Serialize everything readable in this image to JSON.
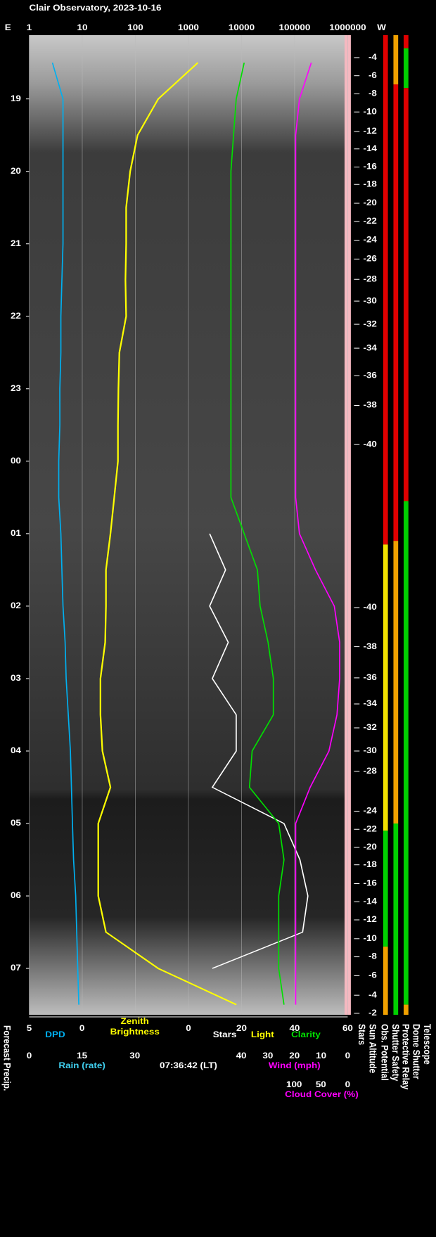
{
  "chart_data": {
    "type": "line",
    "title": "Clair Observatory, 2023-10-16",
    "east_label": "E",
    "west_label": "W",
    "timestamp": "07:36:42 (LT)",
    "forecast_label": "Forecast Precip.",
    "stars_column_label": "Stars",
    "sun_altitude_label": "Sun Altitude",
    "dome_shutter_label": "Dome Shutter",
    "telescope_label": "Telescope",
    "log_scale": true,
    "grid": true,
    "xlim": [
      1,
      1000000
    ],
    "xticks": [
      1,
      10,
      100,
      1000,
      10000,
      100000,
      1000000
    ],
    "time_lim": [
      18.12,
      31.64
    ],
    "time_ticks": [
      {
        "value": 19,
        "label": "19"
      },
      {
        "value": 20,
        "label": "20"
      },
      {
        "value": 21,
        "label": "21"
      },
      {
        "value": 22,
        "label": "22"
      },
      {
        "value": 23,
        "label": "23"
      },
      {
        "value": 24,
        "label": "00"
      },
      {
        "value": 25,
        "label": "01"
      },
      {
        "value": 26,
        "label": "02"
      },
      {
        "value": 27,
        "label": "03"
      },
      {
        "value": 28,
        "label": "04"
      },
      {
        "value": 29,
        "label": "05"
      },
      {
        "value": 30,
        "label": "06"
      },
      {
        "value": 31,
        "label": "07"
      }
    ],
    "scales": {
      "dpd": {
        "lim": [
          5,
          0
        ],
        "ticks": [
          5,
          0
        ],
        "color": "#00b0f0"
      },
      "zenith": {
        "lim": [
          0,
          60
        ],
        "ticks": [
          0,
          20,
          40,
          60
        ],
        "label_lines": [
          "Zenith",
          "Brightness"
        ],
        "color": "#ffff00"
      },
      "rain": {
        "lim": [
          0,
          30
        ],
        "ticks": [
          0,
          15,
          30
        ],
        "label": "Rain (rate)",
        "color": "#40d0f0"
      },
      "wind": {
        "lim": [
          40,
          0
        ],
        "ticks": [
          40,
          30,
          20,
          10,
          0
        ],
        "label": "Wind (mph)",
        "color": "#ff00ff"
      },
      "cloud": {
        "lim": [
          100,
          0
        ],
        "ticks": [
          100,
          50,
          0
        ],
        "color": "#ff00ff"
      }
    },
    "x": [
      18.5,
      19,
      19.5,
      20,
      20.5,
      21,
      21.5,
      22,
      22.5,
      23,
      23.5,
      24,
      24.5,
      25,
      25.5,
      26,
      26.5,
      27,
      27.5,
      28,
      28.5,
      29,
      29.5,
      30,
      30.5,
      31,
      31.5
    ],
    "series": [
      {
        "name": "Light",
        "color": "#ffff00",
        "scale": "log",
        "values": [
          1500,
          270,
          110,
          80,
          67,
          67,
          65,
          67,
          50,
          48,
          47,
          47,
          40,
          34,
          28,
          28,
          27,
          22,
          22,
          24,
          34,
          20,
          20,
          20,
          28,
          270,
          8000
        ]
      },
      {
        "name": "Stars",
        "color": "#ffffff",
        "scale": "zenith",
        "values": [
          null,
          null,
          null,
          null,
          null,
          null,
          null,
          null,
          null,
          null,
          null,
          null,
          null,
          8,
          14,
          8,
          15,
          9,
          18,
          18,
          9,
          36,
          42,
          45,
          43,
          9,
          null
        ]
      },
      {
        "name": "Clarity",
        "color": "#00e000",
        "scale": "zenith",
        "values": [
          21,
          18,
          17,
          16,
          16,
          16,
          16,
          16,
          16,
          16,
          16,
          16,
          16,
          21,
          26,
          27,
          30,
          32,
          32,
          24,
          23,
          34,
          36,
          34,
          34,
          34,
          36
        ]
      },
      {
        "name": "DPD",
        "color": "#00b0f0",
        "scale": "dpd",
        "values": [
          2.8,
          1.8,
          1.8,
          1.8,
          1.8,
          1.8,
          1.9,
          2.0,
          2.0,
          2.1,
          2.1,
          2.2,
          2.2,
          2.0,
          1.9,
          1.8,
          1.6,
          1.5,
          1.3,
          1.1,
          1.0,
          0.9,
          0.8,
          0.6,
          0.5,
          0.4,
          0.3
        ]
      },
      {
        "name": "Cloud Cover (%)",
        "color": "#ff00ff",
        "scale": "cloud",
        "values": [
          68,
          90,
          97,
          97,
          97,
          97,
          97,
          97,
          97,
          97,
          97,
          97,
          97,
          90,
          60,
          25,
          15,
          15,
          20,
          35,
          70,
          97,
          97,
          97,
          97,
          97,
          97
        ]
      }
    ],
    "sun_altitude_ticks": [
      {
        "value": -4,
        "time": 18.43
      },
      {
        "value": -6,
        "time": 18.68
      },
      {
        "value": -8,
        "time": 18.93
      },
      {
        "value": -10,
        "time": 19.18
      },
      {
        "value": -12,
        "time": 19.45
      },
      {
        "value": -14,
        "time": 19.69
      },
      {
        "value": -16,
        "time": 19.94
      },
      {
        "value": -18,
        "time": 20.18
      },
      {
        "value": -20,
        "time": 20.44
      },
      {
        "value": -22,
        "time": 20.69
      },
      {
        "value": -24,
        "time": 20.95
      },
      {
        "value": -26,
        "time": 21.21
      },
      {
        "value": -28,
        "time": 21.49
      },
      {
        "value": -30,
        "time": 21.79
      },
      {
        "value": -32,
        "time": 22.11
      },
      {
        "value": -34,
        "time": 22.44
      },
      {
        "value": -36,
        "time": 22.82
      },
      {
        "value": -38,
        "time": 23.23
      },
      {
        "value": -40,
        "time": 23.77
      },
      {
        "value": -40,
        "time": 26.02
      },
      {
        "value": -38,
        "time": 26.56
      },
      {
        "value": -36,
        "time": 26.99
      },
      {
        "value": -34,
        "time": 27.35
      },
      {
        "value": -32,
        "time": 27.68
      },
      {
        "value": -30,
        "time": 28.0
      },
      {
        "value": -28,
        "time": 28.28
      },
      {
        "value": -24,
        "time": 28.83
      },
      {
        "value": -22,
        "time": 29.08
      },
      {
        "value": -20,
        "time": 29.33
      },
      {
        "value": -18,
        "time": 29.57
      },
      {
        "value": -16,
        "time": 29.83
      },
      {
        "value": -14,
        "time": 30.08
      },
      {
        "value": -12,
        "time": 30.33
      },
      {
        "value": -10,
        "time": 30.59
      },
      {
        "value": -8,
        "time": 30.84
      },
      {
        "value": -6,
        "time": 31.1
      },
      {
        "value": -4,
        "time": 31.37
      },
      {
        "value": -2,
        "time": 31.62
      }
    ],
    "status_columns": [
      {
        "name": "Obs. Potential",
        "segments": [
          {
            "from": 18.12,
            "to": 25.15,
            "color": "#e00000"
          },
          {
            "from": 25.15,
            "to": 29.1,
            "color": "#f0e000"
          },
          {
            "from": 29.1,
            "to": 30.7,
            "color": "#00d000"
          },
          {
            "from": 30.7,
            "to": 31.64,
            "color": "#f0a000"
          }
        ]
      },
      {
        "name": "Shutter Safety",
        "segments": [
          {
            "from": 18.12,
            "to": 18.8,
            "color": "#f0a000"
          },
          {
            "from": 18.8,
            "to": 25.1,
            "color": "#e00000"
          },
          {
            "from": 25.1,
            "to": 29.0,
            "color": "#f0a000"
          },
          {
            "from": 29.0,
            "to": 31.64,
            "color": "#00d000"
          }
        ]
      },
      {
        "name": "Protective Relay",
        "segments": [
          {
            "from": 18.12,
            "to": 18.3,
            "color": "#e00000"
          },
          {
            "from": 18.3,
            "to": 18.85,
            "color": "#00d000"
          },
          {
            "from": 18.85,
            "to": 24.55,
            "color": "#e00000"
          },
          {
            "from": 24.55,
            "to": 31.5,
            "color": "#00d000"
          },
          {
            "from": 31.5,
            "to": 31.64,
            "color": "#f0a000"
          }
        ]
      }
    ]
  }
}
